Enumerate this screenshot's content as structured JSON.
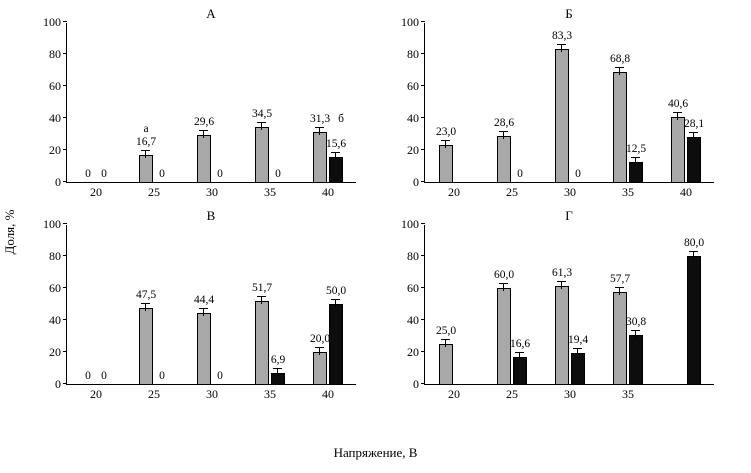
{
  "figure": {
    "ylabel": "Доля, %",
    "xlabel": "Напряжение, В",
    "colors": {
      "gray_bar": "#a8a8a8",
      "black_bar": "#0d0d0d"
    },
    "y_ticks": [
      0,
      20,
      40,
      60,
      80,
      100
    ]
  },
  "chart_data": [
    {
      "type": "bar",
      "title": "А",
      "categories": [
        "20",
        "25",
        "30",
        "35",
        "40"
      ],
      "ylim": [
        0,
        100
      ],
      "series": [
        {
          "name": "gray",
          "values": [
            0,
            16.7,
            29.6,
            34.5,
            31.3
          ],
          "labels": [
            "0",
            "16,7",
            "29,6",
            "34,5",
            "31,3"
          ],
          "markers": [
            null,
            {
              "text": "а",
              "pos": "above"
            },
            null,
            null,
            {
              "text": "б",
              "pos": "right"
            }
          ]
        },
        {
          "name": "black",
          "values": [
            0,
            0,
            0,
            0,
            15.6
          ],
          "labels": [
            "0",
            "0",
            "0",
            "0",
            "15,6"
          ]
        }
      ]
    },
    {
      "type": "bar",
      "title": "Б",
      "categories": [
        "20",
        "25",
        "30",
        "35",
        "40"
      ],
      "ylim": [
        0,
        100
      ],
      "series": [
        {
          "name": "gray",
          "values": [
            23.0,
            28.6,
            83.3,
            68.8,
            40.6
          ],
          "labels": [
            "23,0",
            "28,6",
            "83,3",
            "68,8",
            "40,6"
          ]
        },
        {
          "name": "black",
          "values": [
            null,
            0,
            0,
            12.5,
            28.1
          ],
          "labels": [
            null,
            "0",
            "0",
            "12,5",
            "28,1"
          ]
        }
      ]
    },
    {
      "type": "bar",
      "title": "В",
      "categories": [
        "20",
        "25",
        "30",
        "35",
        "40"
      ],
      "ylim": [
        0,
        100
      ],
      "series": [
        {
          "name": "gray",
          "values": [
            0,
            47.5,
            44.4,
            51.7,
            20.0
          ],
          "labels": [
            "0",
            "47,5",
            "44,4",
            "51,7",
            "20,0"
          ]
        },
        {
          "name": "black",
          "values": [
            0,
            0,
            0,
            6.9,
            50.0
          ],
          "labels": [
            "0",
            "0",
            "0",
            "6,9",
            "50,0"
          ]
        }
      ]
    },
    {
      "type": "bar",
      "title": "Г",
      "categories": [
        "20",
        "25",
        "30",
        "35",
        ""
      ],
      "ylim": [
        0,
        100
      ],
      "series": [
        {
          "name": "gray",
          "values": [
            25.0,
            60.0,
            61.3,
            57.7,
            null
          ],
          "labels": [
            "25,0",
            "60,0",
            "61,3",
            "57,7",
            null
          ]
        },
        {
          "name": "black",
          "values": [
            null,
            16.6,
            19.4,
            30.8,
            80.0
          ],
          "labels": [
            null,
            "16,6",
            "19,4",
            "30,8",
            "80,0"
          ]
        }
      ]
    }
  ]
}
